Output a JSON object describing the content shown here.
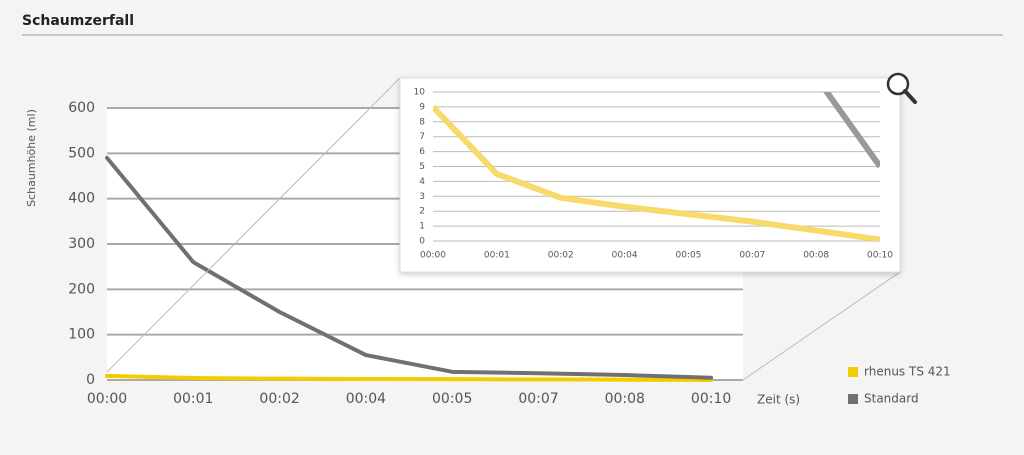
{
  "title": "Schaumzerfall",
  "chart_data": [
    {
      "type": "line",
      "y_label": "Schaumhöhe (ml)",
      "x_label": "Zeit (s)",
      "categories": [
        "00:00",
        "00:01",
        "00:02",
        "00:04",
        "00:05",
        "00:07",
        "00:08",
        "00:10"
      ],
      "ylim": [
        0,
        600
      ],
      "yticks": [
        0,
        100,
        200,
        300,
        400,
        500,
        600
      ],
      "grid": true,
      "legend": "right",
      "series": [
        {
          "name": "rhenus TS 421",
          "color": "#f5cc00",
          "values": [
            9,
            4.5,
            2.9,
            2.3,
            1.8,
            1.3,
            0.7,
            0.1
          ]
        },
        {
          "name": "Standard",
          "color": "#707070",
          "values": [
            490,
            260,
            150,
            55,
            18,
            15,
            11,
            5
          ]
        }
      ]
    },
    {
      "type": "line",
      "categories": [
        "00:00",
        "00:01",
        "00:02",
        "00:04",
        "00:05",
        "00:07",
        "00:08",
        "00:10"
      ],
      "ylim": [
        0,
        10
      ],
      "yticks": [
        0,
        1,
        2,
        3,
        4,
        5,
        6,
        7,
        8,
        9,
        10
      ],
      "grid": true
    }
  ]
}
